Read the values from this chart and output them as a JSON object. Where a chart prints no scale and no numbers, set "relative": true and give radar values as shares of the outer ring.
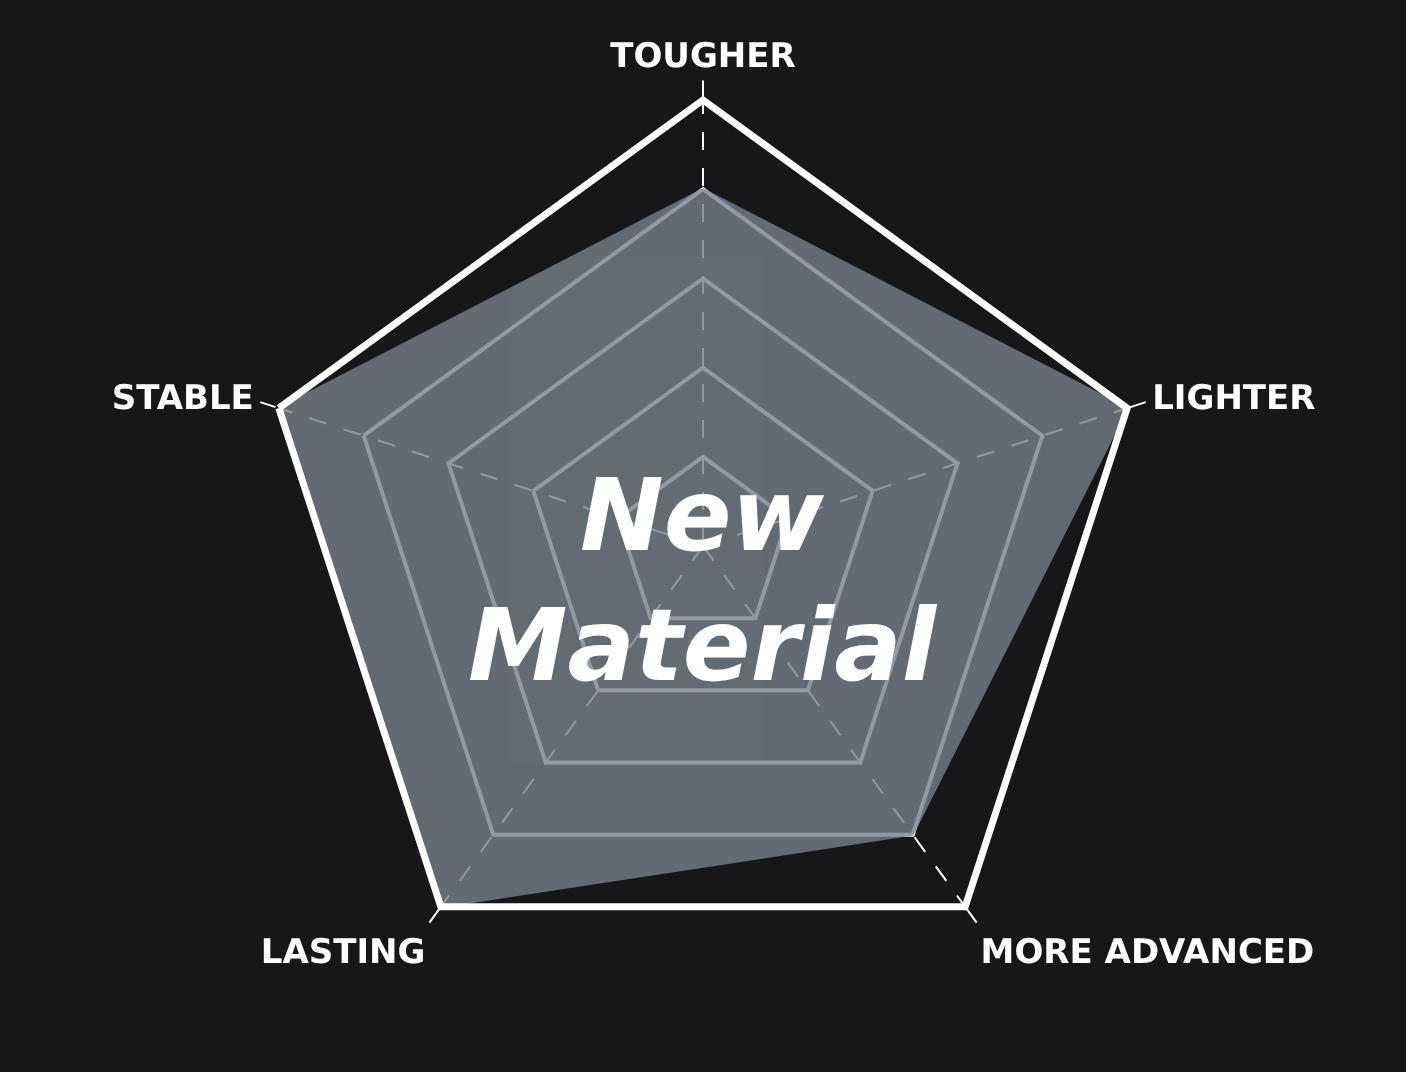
{
  "chart_data": {
    "type": "radar",
    "relative": true,
    "grid": true,
    "categories": [
      "TOUGHER",
      "LIGHTER",
      "MORE ADVANCED",
      "LASTING",
      "STABLE"
    ],
    "series": [
      {
        "color": "#77808a",
        "values": [
          0.8,
          1,
          0.8,
          1,
          1
        ]
      }
    ],
    "annotations": [
      "New\nMaterial"
    ]
  }
}
